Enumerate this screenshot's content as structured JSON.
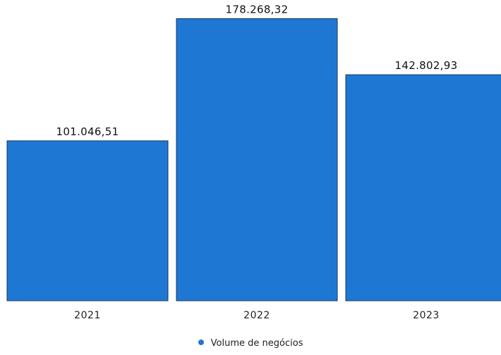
{
  "colors": {
    "bar_fill": "#1f77d4",
    "bar_stroke": "#1a3a5c"
  },
  "chart_data": {
    "type": "bar",
    "categories": [
      "2021",
      "2022",
      "2023"
    ],
    "series": [
      {
        "name": "Volume de negócios",
        "values": [
          101046.51,
          178268.32,
          142802.93
        ],
        "labels": [
          "101.046,51",
          "178.268,32",
          "142.802,93"
        ]
      }
    ],
    "title": "",
    "xlabel": "",
    "ylabel": "",
    "ylim": [
      0,
      182000
    ],
    "grid": false,
    "legend_position": "bottom-center"
  }
}
